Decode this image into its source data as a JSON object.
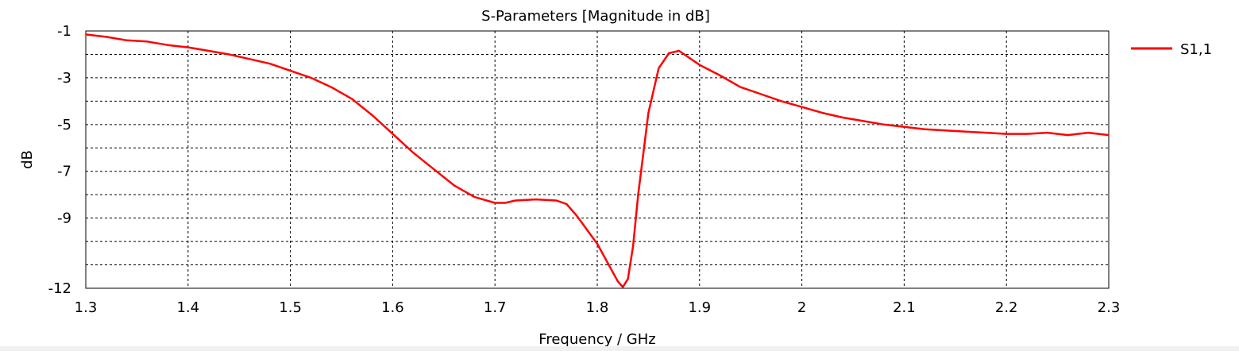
{
  "chart_data": {
    "type": "line",
    "title": "S-Parameters [Magnitude in dB]",
    "xlabel": "Frequency / GHz",
    "ylabel": "dB",
    "xlim": [
      1.3,
      2.3
    ],
    "ylim": [
      -12,
      -1
    ],
    "x_ticks": [
      "1.3",
      "1.4",
      "1.5",
      "1.6",
      "1.7",
      "1.8",
      "1.9",
      "2",
      "2.1",
      "2.2",
      "2.3"
    ],
    "y_ticks": [
      "-1",
      "-3",
      "-5",
      "-7",
      "-9",
      "-12"
    ],
    "grid": true,
    "legend_position": "right",
    "series": [
      {
        "name": "S1,1",
        "color": "#ff0000",
        "x": [
          1.3,
          1.32,
          1.34,
          1.36,
          1.38,
          1.4,
          1.42,
          1.44,
          1.46,
          1.48,
          1.5,
          1.52,
          1.54,
          1.56,
          1.58,
          1.6,
          1.62,
          1.64,
          1.66,
          1.68,
          1.7,
          1.71,
          1.72,
          1.74,
          1.76,
          1.77,
          1.78,
          1.79,
          1.8,
          1.81,
          1.82,
          1.825,
          1.83,
          1.835,
          1.84,
          1.85,
          1.86,
          1.87,
          1.88,
          1.89,
          1.9,
          1.92,
          1.94,
          1.96,
          1.98,
          2.0,
          2.02,
          2.04,
          2.06,
          2.08,
          2.1,
          2.12,
          2.14,
          2.16,
          2.18,
          2.2,
          2.22,
          2.24,
          2.26,
          2.28,
          2.3
        ],
        "y": [
          -1.15,
          -1.25,
          -1.4,
          -1.45,
          -1.6,
          -1.7,
          -1.85,
          -2.0,
          -2.2,
          -2.4,
          -2.7,
          -3.0,
          -3.4,
          -3.9,
          -4.6,
          -5.4,
          -6.2,
          -6.9,
          -7.6,
          -8.1,
          -8.35,
          -8.35,
          -8.25,
          -8.2,
          -8.25,
          -8.4,
          -8.9,
          -9.5,
          -10.1,
          -10.9,
          -11.7,
          -11.95,
          -11.6,
          -10.2,
          -8.0,
          -4.5,
          -2.6,
          -1.95,
          -1.85,
          -2.15,
          -2.45,
          -2.9,
          -3.4,
          -3.7,
          -4.0,
          -4.25,
          -4.5,
          -4.7,
          -4.85,
          -5.0,
          -5.1,
          -5.2,
          -5.25,
          -5.3,
          -5.35,
          -5.4,
          -5.4,
          -5.35,
          -5.45,
          -5.35,
          -5.45
        ]
      }
    ]
  }
}
